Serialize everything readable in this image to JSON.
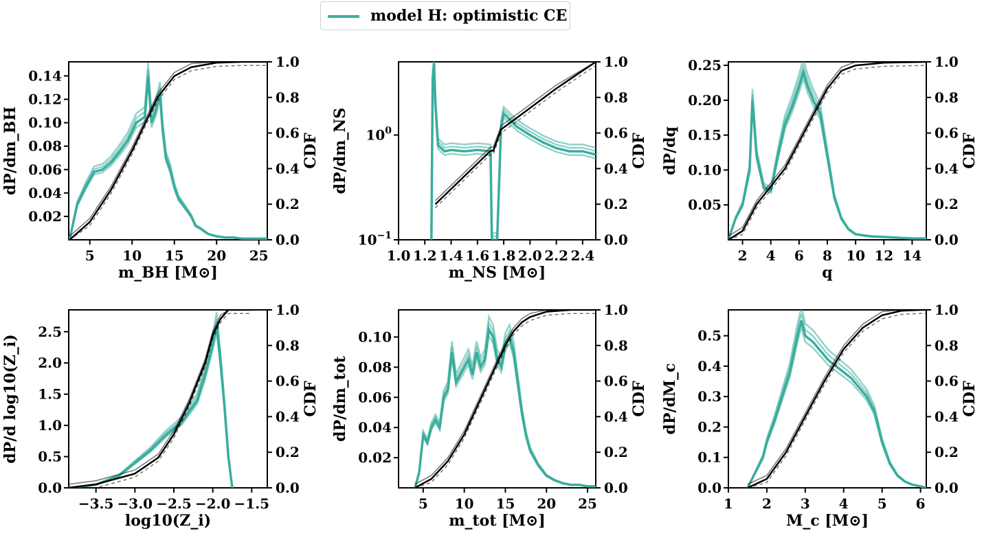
{
  "legend": {
    "label": "model H: optimistic CE",
    "color": "#3aad9c"
  },
  "colors": {
    "pdf": "#3aad9c",
    "cdf": "#000000"
  },
  "chart_data": [
    {
      "type": "line",
      "xlabel": "m_BH [M⊙]",
      "ylabel": "dP/dm_BH",
      "ylabel_right": "CDF",
      "xlim": [
        2.5,
        26
      ],
      "ylim": [
        0,
        0.152
      ],
      "xticks": [
        "5",
        "10",
        "15",
        "20",
        "25"
      ],
      "yticks": [
        "0.02",
        "0.04",
        "0.06",
        "0.08",
        "0.10",
        "0.12",
        "0.14"
      ],
      "yticks_right": [
        "0.0",
        "0.2",
        "0.4",
        "0.6",
        "0.8",
        "1.0"
      ],
      "series": [
        {
          "axis": "left",
          "x": [
            2.6,
            3.5,
            4.5,
            5.5,
            6.5,
            7.5,
            8.5,
            9.5,
            10.5,
            11.5,
            11.9,
            12.3,
            12.8,
            13.3,
            13.6,
            14,
            14.5,
            15,
            15.5,
            16,
            16.5,
            17,
            17.5,
            18,
            19,
            20,
            21,
            22,
            23,
            24,
            25,
            26
          ],
          "y": [
            0.0,
            0.03,
            0.045,
            0.058,
            0.06,
            0.066,
            0.075,
            0.085,
            0.1,
            0.105,
            0.14,
            0.1,
            0.11,
            0.125,
            0.095,
            0.07,
            0.06,
            0.045,
            0.035,
            0.03,
            0.025,
            0.02,
            0.012,
            0.01,
            0.005,
            0.003,
            0.002,
            0.002,
            0.001,
            0.001,
            0.001,
            0.001
          ]
        },
        {
          "axis": "right",
          "x": [
            2.6,
            5,
            7.5,
            10,
            12.5,
            13,
            15,
            17,
            20,
            23,
            26
          ],
          "y": [
            0.0,
            0.1,
            0.28,
            0.5,
            0.75,
            0.8,
            0.92,
            0.97,
            0.995,
            1.0,
            1.0
          ]
        }
      ]
    },
    {
      "type": "line",
      "xlabel": "m_NS [M⊙]",
      "ylabel": "dP/dm_NS",
      "ylabel_right": "CDF",
      "xlim": [
        1.0,
        2.5
      ],
      "ylim": [
        0.1,
        5
      ],
      "yscale": "log",
      "xticks": [
        "1.0",
        "1.2",
        "1.4",
        "1.6",
        "1.8",
        "2.0",
        "2.2",
        "2.4"
      ],
      "yticks": [
        "10^−1",
        "10^0"
      ],
      "yticks_right": [
        "0.0",
        "0.2",
        "0.4",
        "0.6",
        "0.8",
        "1.0"
      ],
      "series": [
        {
          "axis": "left",
          "x": [
            1.25,
            1.26,
            1.27,
            1.28,
            1.3,
            1.35,
            1.4,
            1.5,
            1.6,
            1.7,
            1.71,
            1.72,
            1.75,
            1.78,
            1.8,
            1.9,
            2.0,
            2.1,
            2.2,
            2.3,
            2.4,
            2.5
          ],
          "y": [
            0.1,
            3.5,
            4.8,
            2.0,
            0.8,
            0.7,
            0.72,
            0.7,
            0.72,
            0.7,
            0.1,
            0.1,
            0.1,
            1.2,
            1.6,
            1.2,
            1.0,
            0.85,
            0.75,
            0.7,
            0.7,
            0.65
          ]
        },
        {
          "axis": "right",
          "x": [
            1.28,
            1.7,
            1.72,
            1.78,
            2.0,
            2.2,
            2.5
          ],
          "y": [
            0.2,
            0.5,
            0.5,
            0.62,
            0.74,
            0.85,
            1.0
          ]
        }
      ]
    },
    {
      "type": "line",
      "xlabel": "q",
      "ylabel": "dP/dq",
      "ylabel_right": "CDF",
      "xlim": [
        1,
        15
      ],
      "ylim": [
        0,
        0.255
      ],
      "xticks": [
        "2",
        "4",
        "6",
        "8",
        "10",
        "12",
        "14"
      ],
      "yticks": [
        "0.05",
        "0.10",
        "0.15",
        "0.20",
        "0.25"
      ],
      "yticks_right": [
        "0.0",
        "0.2",
        "0.4",
        "0.6",
        "0.8",
        "1.0"
      ],
      "series": [
        {
          "axis": "left",
          "x": [
            1,
            1.5,
            2,
            2.5,
            2.7,
            3,
            3.5,
            4,
            4.5,
            5,
            5.5,
            6,
            6.3,
            6.6,
            7,
            7.5,
            8,
            8.5,
            9,
            9.5,
            10,
            11,
            12,
            13,
            14,
            15
          ],
          "y": [
            0.0,
            0.03,
            0.05,
            0.1,
            0.2,
            0.12,
            0.075,
            0.07,
            0.12,
            0.165,
            0.19,
            0.22,
            0.24,
            0.22,
            0.2,
            0.18,
            0.12,
            0.06,
            0.03,
            0.015,
            0.008,
            0.005,
            0.004,
            0.003,
            0.002,
            0.002
          ]
        },
        {
          "axis": "right",
          "x": [
            1,
            2,
            3,
            4,
            5,
            6,
            7,
            8,
            9,
            10,
            12,
            15
          ],
          "y": [
            0.0,
            0.05,
            0.2,
            0.3,
            0.4,
            0.55,
            0.7,
            0.85,
            0.95,
            0.98,
            0.995,
            1.0
          ]
        }
      ]
    },
    {
      "type": "line",
      "xlabel": "log10(Z_i)",
      "ylabel": "dP/d log10(Z_i)",
      "ylabel_right": "CDF",
      "xlim": [
        -3.85,
        -1.3
      ],
      "ylim": [
        0,
        2.85
      ],
      "xticks": [
        "−3.5",
        "−3.0",
        "−2.5",
        "−2.0",
        "−1.5"
      ],
      "yticks": [
        "0.0",
        "0.5",
        "1.0",
        "1.5",
        "2.0",
        "2.5"
      ],
      "yticks_right": [
        "0.0",
        "0.2",
        "0.4",
        "0.6",
        "0.8",
        "1.0"
      ],
      "series": [
        {
          "axis": "left",
          "x": [
            -3.85,
            -3.5,
            -3.2,
            -3.0,
            -2.8,
            -2.6,
            -2.4,
            -2.2,
            -2.1,
            -2.0,
            -1.95,
            -1.9,
            -1.85,
            -1.8,
            -1.75
          ],
          "y": [
            0.0,
            0.05,
            0.2,
            0.4,
            0.6,
            0.85,
            1.05,
            1.4,
            1.8,
            2.3,
            2.6,
            2.0,
            1.3,
            0.5,
            0.0
          ]
        },
        {
          "axis": "right",
          "x": [
            -3.85,
            -3.5,
            -3.0,
            -2.7,
            -2.5,
            -2.3,
            -2.1,
            -2.0,
            -1.9,
            -1.8,
            -1.6,
            -1.5
          ],
          "y": [
            0.0,
            0.02,
            0.08,
            0.17,
            0.3,
            0.48,
            0.7,
            0.86,
            0.95,
            1.0,
            1.0,
            1.0
          ]
        }
      ]
    },
    {
      "type": "line",
      "xlabel": "m_tot [M⊙]",
      "ylabel": "dP/dm_tot",
      "ylabel_right": "CDF",
      "xlim": [
        2,
        26
      ],
      "ylim": [
        0,
        0.118
      ],
      "xticks": [
        "5",
        "10",
        "15",
        "20",
        "25"
      ],
      "yticks": [
        "0.02",
        "0.04",
        "0.06",
        "0.08",
        "0.10"
      ],
      "yticks_right": [
        "0.0",
        "0.2",
        "0.4",
        "0.6",
        "0.8",
        "1.0"
      ],
      "series": [
        {
          "axis": "left",
          "x": [
            4,
            4.5,
            5,
            5.5,
            6,
            6.5,
            7,
            7.5,
            8,
            8.5,
            9,
            9.5,
            10,
            10.5,
            11,
            11.5,
            12,
            12.5,
            13,
            13.5,
            14,
            14.5,
            15,
            15.5,
            16,
            16.5,
            17,
            17.5,
            18,
            19,
            20,
            21,
            22,
            23,
            24,
            25,
            26
          ],
          "y": [
            0.0,
            0.01,
            0.035,
            0.03,
            0.04,
            0.045,
            0.04,
            0.06,
            0.065,
            0.09,
            0.07,
            0.075,
            0.08,
            0.085,
            0.075,
            0.09,
            0.08,
            0.085,
            0.105,
            0.1,
            0.085,
            0.08,
            0.095,
            0.1,
            0.09,
            0.07,
            0.05,
            0.035,
            0.025,
            0.015,
            0.008,
            0.005,
            0.003,
            0.002,
            0.002,
            0.001,
            0.001
          ]
        },
        {
          "axis": "right",
          "x": [
            4,
            6,
            8,
            10,
            12,
            14,
            15,
            16,
            17,
            18,
            20,
            23,
            26
          ],
          "y": [
            0.0,
            0.05,
            0.15,
            0.3,
            0.5,
            0.7,
            0.8,
            0.88,
            0.93,
            0.96,
            0.99,
            1.0,
            1.0
          ]
        }
      ]
    },
    {
      "type": "line",
      "xlabel": "M_c [M⊙]",
      "ylabel": "dP/dM_c",
      "ylabel_right": "CDF",
      "xlim": [
        1,
        6.15
      ],
      "ylim": [
        0,
        0.585
      ],
      "xticks": [
        "1",
        "2",
        "3",
        "4",
        "5",
        "6"
      ],
      "yticks": [
        "0.0",
        "0.1",
        "0.2",
        "0.3",
        "0.4",
        "0.5"
      ],
      "yticks_right": [
        "0.0",
        "0.2",
        "0.4",
        "0.6",
        "0.8",
        "1.0"
      ],
      "series": [
        {
          "axis": "left",
          "x": [
            1.5,
            1.7,
            1.9,
            2.0,
            2.2,
            2.4,
            2.6,
            2.8,
            2.9,
            3.0,
            3.2,
            3.4,
            3.6,
            3.8,
            4.0,
            4.2,
            4.4,
            4.6,
            4.8,
            5.0,
            5.2,
            5.4,
            5.6,
            5.8,
            6.0,
            6.15
          ],
          "y": [
            0.0,
            0.05,
            0.1,
            0.15,
            0.22,
            0.3,
            0.38,
            0.5,
            0.55,
            0.5,
            0.48,
            0.45,
            0.42,
            0.4,
            0.38,
            0.36,
            0.33,
            0.3,
            0.25,
            0.15,
            0.08,
            0.04,
            0.02,
            0.01,
            0.005,
            0.0
          ]
        },
        {
          "axis": "right",
          "x": [
            1.5,
            2.0,
            2.5,
            3.0,
            3.5,
            4.0,
            4.5,
            5.0,
            5.5,
            6.0,
            6.15
          ],
          "y": [
            0.0,
            0.05,
            0.2,
            0.4,
            0.6,
            0.78,
            0.9,
            0.97,
            0.995,
            1.0,
            1.0
          ]
        }
      ]
    }
  ]
}
